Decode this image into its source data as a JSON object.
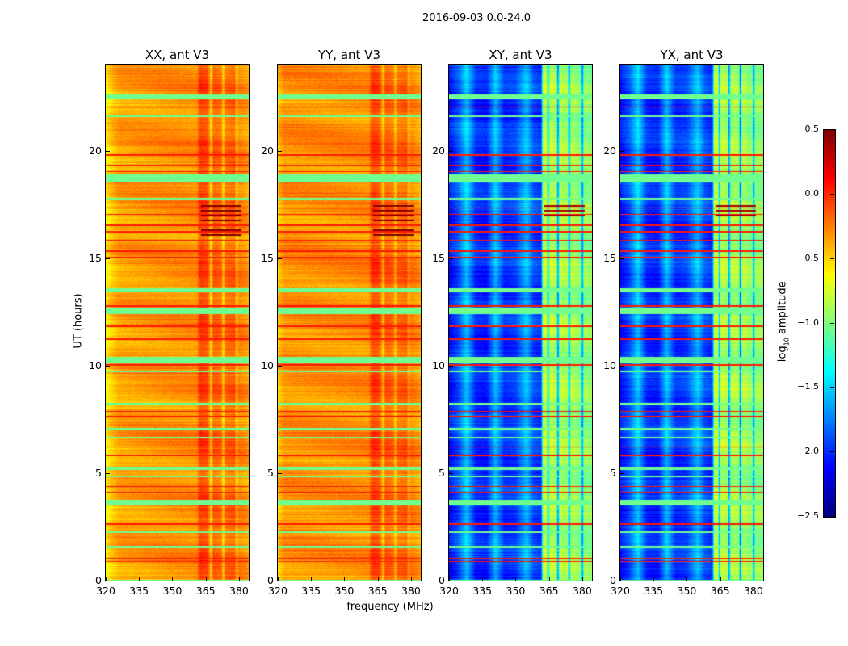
{
  "title": "2016-09-03 0.0-24.0",
  "chart_data": {
    "type": "heatmap",
    "title": "2016-09-03 0.0-24.0",
    "xlabel": "frequency (MHz)",
    "ylabel": "UT (hours)",
    "xlim": [
      320,
      384.4
    ],
    "ylim": [
      0,
      24
    ],
    "xticks": [
      "320",
      "335",
      "350",
      "365",
      "380"
    ],
    "xtick_values": [
      320,
      335,
      350,
      365,
      380
    ],
    "yticks": [
      "0",
      "5",
      "10",
      "15",
      "20"
    ],
    "ytick_values": [
      0,
      5,
      10,
      15,
      20
    ],
    "colorbar": {
      "label_main": "log",
      "label_sub": "10",
      "label_rest": " amplitude",
      "vmin": -2.5,
      "vmax": 0.5,
      "colormap": "jet",
      "ticks": [
        "0.5",
        "0.0",
        "−0.5",
        "−1.0",
        "−1.5",
        "−2.0",
        "−2.5"
      ],
      "tick_values": [
        0.5,
        0.0,
        -0.5,
        -1.0,
        -1.5,
        -2.0,
        -2.5
      ]
    },
    "panels": [
      {
        "title": "XX, ant V3",
        "freq_profile": [
          [
            320,
            -0.6
          ],
          [
            323,
            -0.45
          ],
          [
            326,
            -0.35
          ],
          [
            350,
            -0.3
          ],
          [
            361,
            -0.3
          ],
          [
            362.5,
            -0.05
          ],
          [
            366,
            -0.1
          ],
          [
            367.5,
            -0.5
          ],
          [
            368.5,
            -0.15
          ],
          [
            372,
            -0.2
          ],
          [
            373,
            -0.5
          ],
          [
            374,
            -0.2
          ],
          [
            378,
            -0.15
          ],
          [
            379,
            -0.45
          ],
          [
            380,
            -0.25
          ],
          [
            384.4,
            -0.35
          ]
        ],
        "dark_region": {
          "t": [
            16.0,
            17.6
          ],
          "f": [
            363,
            381
          ],
          "value": 0.5
        }
      },
      {
        "title": "YY, ant V3",
        "freq_profile": [
          [
            320,
            -0.45
          ],
          [
            323,
            -0.3
          ],
          [
            350,
            -0.3
          ],
          [
            361,
            -0.3
          ],
          [
            362.5,
            -0.05
          ],
          [
            366,
            -0.1
          ],
          [
            367.5,
            -0.45
          ],
          [
            368.5,
            -0.15
          ],
          [
            372,
            -0.2
          ],
          [
            373,
            -0.45
          ],
          [
            374,
            -0.2
          ],
          [
            378,
            -0.15
          ],
          [
            379,
            -0.4
          ],
          [
            380,
            -0.25
          ],
          [
            384.4,
            -0.35
          ]
        ],
        "dark_region": {
          "t": [
            16.0,
            17.6
          ],
          "f": [
            363,
            381
          ],
          "value": 0.5
        }
      },
      {
        "title": "XY, ant V3",
        "freq_profile": [
          [
            320,
            -2.1
          ],
          [
            324,
            -1.9
          ],
          [
            328,
            -1.5
          ],
          [
            332,
            -2.0
          ],
          [
            337,
            -2.05
          ],
          [
            341,
            -1.55
          ],
          [
            345,
            -2.0
          ],
          [
            350,
            -1.95
          ],
          [
            355,
            -1.55
          ],
          [
            358,
            -1.9
          ],
          [
            361.5,
            -2.0
          ],
          [
            362.5,
            -0.75
          ],
          [
            364,
            -0.8
          ],
          [
            364.5,
            -1.6
          ],
          [
            365.5,
            -0.8
          ],
          [
            368.5,
            -0.9
          ],
          [
            369,
            -1.8
          ],
          [
            370,
            -0.85
          ],
          [
            373.5,
            -0.9
          ],
          [
            374,
            -1.8
          ],
          [
            375,
            -0.85
          ],
          [
            379.5,
            -1.0
          ],
          [
            380,
            -1.8
          ],
          [
            381,
            -0.9
          ],
          [
            384.4,
            -1.0
          ]
        ],
        "dark_region": {
          "t": [
            16.8,
            17.6
          ],
          "f": [
            363,
            381
          ],
          "value": 0.4
        }
      },
      {
        "title": "YX, ant V3",
        "freq_profile": [
          [
            320,
            -2.1
          ],
          [
            324,
            -1.9
          ],
          [
            328,
            -1.5
          ],
          [
            332,
            -2.0
          ],
          [
            337,
            -2.05
          ],
          [
            341,
            -1.55
          ],
          [
            345,
            -2.0
          ],
          [
            350,
            -1.95
          ],
          [
            355,
            -1.55
          ],
          [
            358,
            -1.9
          ],
          [
            361.5,
            -2.0
          ],
          [
            362.5,
            -0.75
          ],
          [
            364,
            -0.8
          ],
          [
            364.5,
            -1.6
          ],
          [
            365.5,
            -0.8
          ],
          [
            368.5,
            -0.9
          ],
          [
            369,
            -1.8
          ],
          [
            370,
            -0.85
          ],
          [
            373.5,
            -0.9
          ],
          [
            374,
            -1.8
          ],
          [
            375,
            -0.85
          ],
          [
            379.5,
            -1.0
          ],
          [
            380,
            -1.8
          ],
          [
            381,
            -0.9
          ],
          [
            384.4,
            -1.0
          ]
        ],
        "dark_region": {
          "t": [
            16.8,
            17.6
          ],
          "f": [
            363,
            381
          ],
          "value": 0.4
        }
      }
    ],
    "flagged_bands": {
      "value": -1.05,
      "times": [
        [
          22.4,
          22.6
        ],
        [
          21.55,
          21.65
        ],
        [
          18.5,
          18.9
        ],
        [
          17.7,
          17.8
        ],
        [
          13.4,
          13.6
        ],
        [
          12.4,
          12.7
        ],
        [
          10.1,
          10.4
        ],
        [
          9.7,
          9.76
        ],
        [
          8.15,
          8.25
        ],
        [
          7.0,
          7.1
        ],
        [
          6.6,
          6.7
        ],
        [
          5.15,
          5.3
        ],
        [
          4.8,
          4.9
        ],
        [
          3.5,
          3.75
        ],
        [
          2.2,
          2.3
        ],
        [
          1.5,
          1.6
        ],
        [
          0,
          0.05
        ]
      ]
    },
    "red_bands": {
      "value": 0.05,
      "times": [
        [
          22.0,
          22.05
        ],
        [
          19.75,
          19.82
        ],
        [
          19.3,
          19.35
        ],
        [
          19.0,
          19.05
        ],
        [
          17.3,
          17.35
        ],
        [
          17.0,
          17.05
        ],
        [
          16.5,
          16.55
        ],
        [
          16.2,
          16.25
        ],
        [
          15.8,
          15.85
        ],
        [
          15.3,
          15.35
        ],
        [
          15.0,
          15.05
        ],
        [
          12.75,
          12.8
        ],
        [
          11.8,
          11.85
        ],
        [
          11.2,
          11.25
        ],
        [
          10.0,
          10.05
        ],
        [
          7.85,
          7.9
        ],
        [
          7.6,
          7.65
        ],
        [
          6.2,
          6.25
        ],
        [
          5.8,
          5.85
        ],
        [
          4.35,
          4.4
        ],
        [
          4.1,
          4.15
        ],
        [
          2.6,
          2.65
        ],
        [
          1.0,
          1.05
        ],
        [
          0.85,
          0.9
        ]
      ]
    }
  }
}
